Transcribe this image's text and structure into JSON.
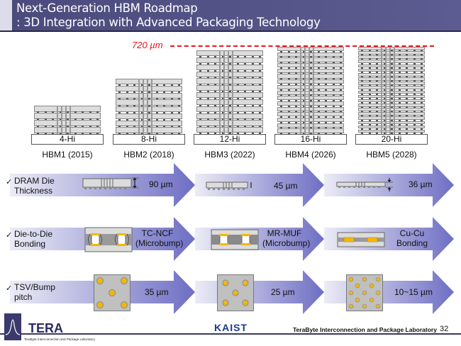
{
  "header": {
    "title_line1": "Next-Generation HBM Roadmap",
    "title_line2": ": 3D Integration with Advanced Packaging Technology",
    "bg_color": "#55558a"
  },
  "height_limit": {
    "label": "720 µm",
    "color": "#e8141c"
  },
  "generations": [
    {
      "name": "HBM1 (2015)",
      "stack": "4-Hi",
      "layers": 4
    },
    {
      "name": "HBM2 (2018)",
      "stack": "8-Hi",
      "layers": 8
    },
    {
      "name": "HBM3 (2022)",
      "stack": "12-Hi",
      "layers": 12
    },
    {
      "name": "HBM4 (2026)",
      "stack": "16-Hi",
      "layers": 16
    },
    {
      "name": "HBM5 (2028)",
      "stack": "20-Hi",
      "layers": 20
    }
  ],
  "rows": [
    {
      "check": "✓",
      "label_line1": "DRAM Die",
      "label_line2": "Thickness",
      "values": [
        "90 µm",
        "45 µm",
        "36 µm"
      ]
    },
    {
      "check": "✓",
      "label_line1": "Die-to-Die",
      "label_line2": "Bonding",
      "values": [
        [
          "TC-NCF",
          "(Microbump)"
        ],
        [
          "MR-MUF",
          "(Microbump)"
        ],
        [
          "Cu-Cu",
          "Bonding"
        ]
      ]
    },
    {
      "check": "✓",
      "label_line1": "TSV/Bump",
      "label_line2": "pitch",
      "values": [
        "35 µm",
        "25 µm",
        "10~15 µm"
      ]
    }
  ],
  "footer": {
    "logo_left": "TERA",
    "logo_left_sub": "TeraByte Interconnection and Package Laboratory",
    "logo_center": "KAIST",
    "lab_name": "TeraByte Interconnection and Package Laboratory",
    "page_number": "32"
  },
  "colors": {
    "arrow_start": "#ececf6",
    "arrow_end": "#6e6ec4",
    "bump_gold": "#f5b800"
  }
}
